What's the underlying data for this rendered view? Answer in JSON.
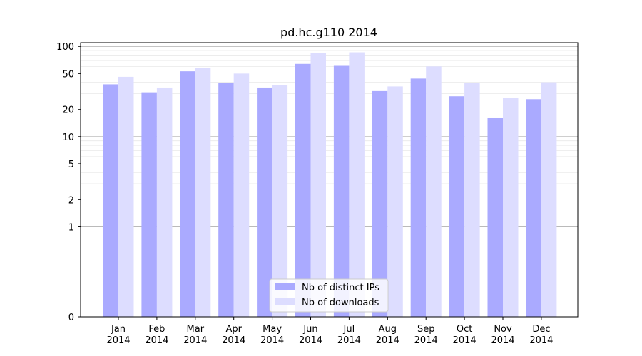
{
  "chart_data": {
    "type": "bar",
    "title": "pd.hc.g110 2014",
    "xlabel": "",
    "ylabel": "",
    "y_scale": "symlog",
    "ylim": [
      0,
      110
    ],
    "y_ticks": [
      0,
      1,
      2,
      5,
      10,
      20,
      50,
      100
    ],
    "grid": "horizontal",
    "legend_position": "bottom-center",
    "categories": [
      [
        "Jan",
        "2014"
      ],
      [
        "Feb",
        "2014"
      ],
      [
        "Mar",
        "2014"
      ],
      [
        "Apr",
        "2014"
      ],
      [
        "May",
        "2014"
      ],
      [
        "Jun",
        "2014"
      ],
      [
        "Jul",
        "2014"
      ],
      [
        "Aug",
        "2014"
      ],
      [
        "Sep",
        "2014"
      ],
      [
        "Oct",
        "2014"
      ],
      [
        "Nov",
        "2014"
      ],
      [
        "Dec",
        "2014"
      ]
    ],
    "series": [
      {
        "name": "Nb of distinct IPs",
        "color": "#aaaaff",
        "values": [
          38,
          31,
          53,
          39,
          35,
          64,
          62,
          32,
          44,
          28,
          16,
          26
        ]
      },
      {
        "name": "Nb of downloads",
        "color": "#ddddff",
        "values": [
          46,
          35,
          58,
          50,
          37,
          85,
          86,
          36,
          60,
          39,
          27,
          40
        ]
      }
    ],
    "colors": {
      "major_grid": "#b0b0b0",
      "minor_grid": "#ececec",
      "axis": "#000000"
    }
  }
}
